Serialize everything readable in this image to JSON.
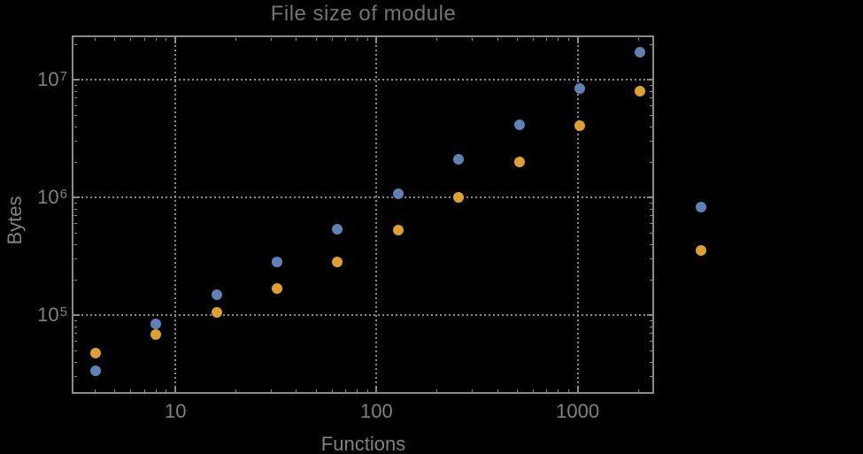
{
  "title": "File size of module",
  "chart_data": {
    "type": "scatter",
    "title": "File size of module",
    "xlabel": "Functions",
    "ylabel": "Bytes",
    "xscale": "log",
    "yscale": "log",
    "grid": "dotted",
    "legend": "none",
    "xlim": [
      3.08,
      2400
    ],
    "ylim": [
      21500,
      23500000
    ],
    "x": [
      4,
      8,
      16,
      32,
      64,
      128,
      256,
      512,
      1024,
      2048,
      4096
    ],
    "series": [
      {
        "name": "series-1-blue",
        "color": "#5e82b5",
        "values": [
          34000,
          84000,
          149000,
          283000,
          536000,
          1070000,
          2100000,
          4150000,
          8400000,
          17100000,
          830000
        ]
      },
      {
        "name": "series-2-orange",
        "color": "#e0a030",
        "values": [
          48000,
          69000,
          105000,
          168000,
          283000,
          530000,
          1000000,
          2000000,
          4060000,
          8000000,
          355000
        ]
      }
    ],
    "xticks": {
      "values": [
        10,
        100,
        1000
      ],
      "labels": [
        "10",
        "100",
        "1000"
      ]
    },
    "yticks": {
      "values": [
        100000,
        1000000,
        10000000
      ],
      "base": "10",
      "exponents": [
        "5",
        "6",
        "7"
      ]
    }
  },
  "colors": {
    "background": "#000000",
    "frame": "#8a8a8a",
    "grid": "#8a8a8a",
    "title_text": "#737373",
    "axis_text": "#818181",
    "series_blue": "#5e82b5",
    "series_orange": "#e0a030"
  }
}
